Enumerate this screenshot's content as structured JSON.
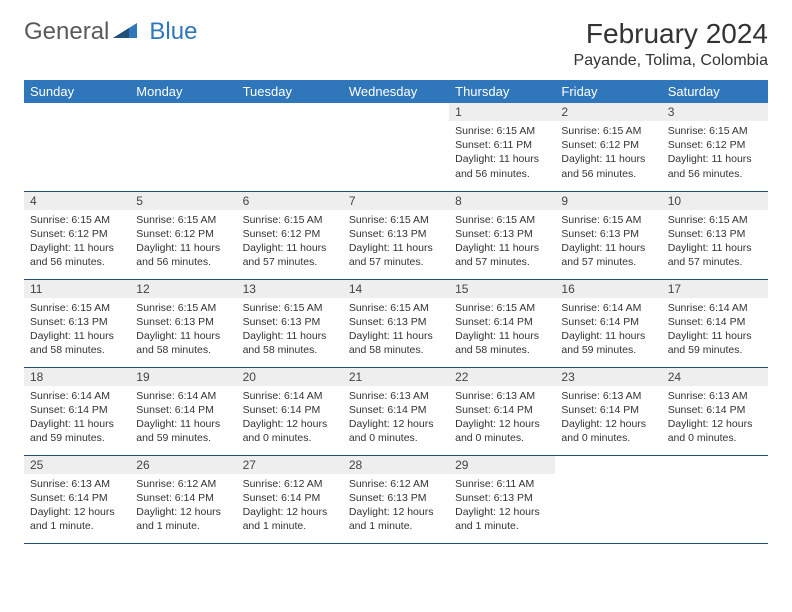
{
  "brand": {
    "general": "General",
    "blue": "Blue"
  },
  "title": "February 2024",
  "location": "Payande, Tolima, Colombia",
  "colors": {
    "header_bg": "#2f76ba",
    "header_text": "#ffffff",
    "daynum_bg": "#eeeeee",
    "rule": "#1f4e79",
    "logo_gray": "#5a5a5a",
    "logo_blue": "#2f76ba"
  },
  "weekdays": [
    "Sunday",
    "Monday",
    "Tuesday",
    "Wednesday",
    "Thursday",
    "Friday",
    "Saturday"
  ],
  "weeks": [
    [
      {
        "n": "",
        "sr": "",
        "ss": "",
        "dl": ""
      },
      {
        "n": "",
        "sr": "",
        "ss": "",
        "dl": ""
      },
      {
        "n": "",
        "sr": "",
        "ss": "",
        "dl": ""
      },
      {
        "n": "",
        "sr": "",
        "ss": "",
        "dl": ""
      },
      {
        "n": "1",
        "sr": "Sunrise: 6:15 AM",
        "ss": "Sunset: 6:11 PM",
        "dl": "Daylight: 11 hours and 56 minutes."
      },
      {
        "n": "2",
        "sr": "Sunrise: 6:15 AM",
        "ss": "Sunset: 6:12 PM",
        "dl": "Daylight: 11 hours and 56 minutes."
      },
      {
        "n": "3",
        "sr": "Sunrise: 6:15 AM",
        "ss": "Sunset: 6:12 PM",
        "dl": "Daylight: 11 hours and 56 minutes."
      }
    ],
    [
      {
        "n": "4",
        "sr": "Sunrise: 6:15 AM",
        "ss": "Sunset: 6:12 PM",
        "dl": "Daylight: 11 hours and 56 minutes."
      },
      {
        "n": "5",
        "sr": "Sunrise: 6:15 AM",
        "ss": "Sunset: 6:12 PM",
        "dl": "Daylight: 11 hours and 56 minutes."
      },
      {
        "n": "6",
        "sr": "Sunrise: 6:15 AM",
        "ss": "Sunset: 6:12 PM",
        "dl": "Daylight: 11 hours and 57 minutes."
      },
      {
        "n": "7",
        "sr": "Sunrise: 6:15 AM",
        "ss": "Sunset: 6:13 PM",
        "dl": "Daylight: 11 hours and 57 minutes."
      },
      {
        "n": "8",
        "sr": "Sunrise: 6:15 AM",
        "ss": "Sunset: 6:13 PM",
        "dl": "Daylight: 11 hours and 57 minutes."
      },
      {
        "n": "9",
        "sr": "Sunrise: 6:15 AM",
        "ss": "Sunset: 6:13 PM",
        "dl": "Daylight: 11 hours and 57 minutes."
      },
      {
        "n": "10",
        "sr": "Sunrise: 6:15 AM",
        "ss": "Sunset: 6:13 PM",
        "dl": "Daylight: 11 hours and 57 minutes."
      }
    ],
    [
      {
        "n": "11",
        "sr": "Sunrise: 6:15 AM",
        "ss": "Sunset: 6:13 PM",
        "dl": "Daylight: 11 hours and 58 minutes."
      },
      {
        "n": "12",
        "sr": "Sunrise: 6:15 AM",
        "ss": "Sunset: 6:13 PM",
        "dl": "Daylight: 11 hours and 58 minutes."
      },
      {
        "n": "13",
        "sr": "Sunrise: 6:15 AM",
        "ss": "Sunset: 6:13 PM",
        "dl": "Daylight: 11 hours and 58 minutes."
      },
      {
        "n": "14",
        "sr": "Sunrise: 6:15 AM",
        "ss": "Sunset: 6:13 PM",
        "dl": "Daylight: 11 hours and 58 minutes."
      },
      {
        "n": "15",
        "sr": "Sunrise: 6:15 AM",
        "ss": "Sunset: 6:14 PM",
        "dl": "Daylight: 11 hours and 58 minutes."
      },
      {
        "n": "16",
        "sr": "Sunrise: 6:14 AM",
        "ss": "Sunset: 6:14 PM",
        "dl": "Daylight: 11 hours and 59 minutes."
      },
      {
        "n": "17",
        "sr": "Sunrise: 6:14 AM",
        "ss": "Sunset: 6:14 PM",
        "dl": "Daylight: 11 hours and 59 minutes."
      }
    ],
    [
      {
        "n": "18",
        "sr": "Sunrise: 6:14 AM",
        "ss": "Sunset: 6:14 PM",
        "dl": "Daylight: 11 hours and 59 minutes."
      },
      {
        "n": "19",
        "sr": "Sunrise: 6:14 AM",
        "ss": "Sunset: 6:14 PM",
        "dl": "Daylight: 11 hours and 59 minutes."
      },
      {
        "n": "20",
        "sr": "Sunrise: 6:14 AM",
        "ss": "Sunset: 6:14 PM",
        "dl": "Daylight: 12 hours and 0 minutes."
      },
      {
        "n": "21",
        "sr": "Sunrise: 6:13 AM",
        "ss": "Sunset: 6:14 PM",
        "dl": "Daylight: 12 hours and 0 minutes."
      },
      {
        "n": "22",
        "sr": "Sunrise: 6:13 AM",
        "ss": "Sunset: 6:14 PM",
        "dl": "Daylight: 12 hours and 0 minutes."
      },
      {
        "n": "23",
        "sr": "Sunrise: 6:13 AM",
        "ss": "Sunset: 6:14 PM",
        "dl": "Daylight: 12 hours and 0 minutes."
      },
      {
        "n": "24",
        "sr": "Sunrise: 6:13 AM",
        "ss": "Sunset: 6:14 PM",
        "dl": "Daylight: 12 hours and 0 minutes."
      }
    ],
    [
      {
        "n": "25",
        "sr": "Sunrise: 6:13 AM",
        "ss": "Sunset: 6:14 PM",
        "dl": "Daylight: 12 hours and 1 minute."
      },
      {
        "n": "26",
        "sr": "Sunrise: 6:12 AM",
        "ss": "Sunset: 6:14 PM",
        "dl": "Daylight: 12 hours and 1 minute."
      },
      {
        "n": "27",
        "sr": "Sunrise: 6:12 AM",
        "ss": "Sunset: 6:14 PM",
        "dl": "Daylight: 12 hours and 1 minute."
      },
      {
        "n": "28",
        "sr": "Sunrise: 6:12 AM",
        "ss": "Sunset: 6:13 PM",
        "dl": "Daylight: 12 hours and 1 minute."
      },
      {
        "n": "29",
        "sr": "Sunrise: 6:11 AM",
        "ss": "Sunset: 6:13 PM",
        "dl": "Daylight: 12 hours and 1 minute."
      },
      {
        "n": "",
        "sr": "",
        "ss": "",
        "dl": ""
      },
      {
        "n": "",
        "sr": "",
        "ss": "",
        "dl": ""
      }
    ]
  ]
}
